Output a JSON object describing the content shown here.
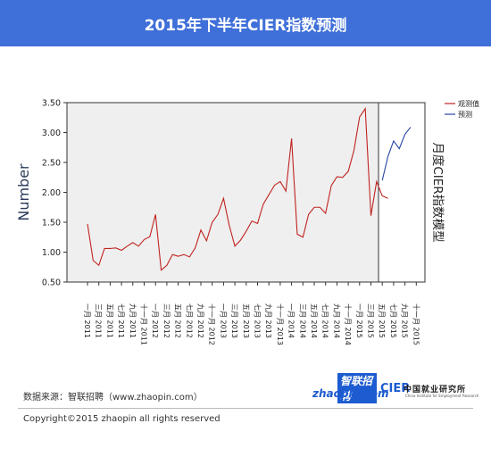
{
  "title": "2015年下半年CIER指数预测",
  "footer": {
    "source": "数据来源：智联招聘（www.zhaopin.com）",
    "copyright": "Copyright©2015 zhaopin all rights reserved"
  },
  "logos": {
    "zhaopin_cn": "智联招聘",
    "zhaopin_en": "zhaopin.com",
    "cier_mark": "CIER",
    "cier_cn": "中国就业研究所",
    "cier_en": "China Institute for Employment Research"
  },
  "colors": {
    "header_bg": "#3f6fd8",
    "observed": "#c0231f",
    "forecast": "#2746a7",
    "plot_bg": "#efefef"
  },
  "chart_data": {
    "type": "line",
    "ylabel": "Number",
    "right_label": "月度CIER指数模型",
    "ylim": [
      0.5,
      3.5
    ],
    "yticks": [
      "0.50",
      "1.00",
      "1.50",
      "2.00",
      "2.50",
      "3.00",
      "3.50"
    ],
    "x_ticks": [
      "一月 2011",
      "三月 2011",
      "五月 2011",
      "七月 2011",
      "九月 2011",
      "十一月 2011",
      "一月 2012",
      "三月 2012",
      "五月 2012",
      "七月 2012",
      "九月 2012",
      "十一月 2012",
      "一月 2013",
      "三月 2013",
      "五月 2013",
      "七月 2013",
      "九月 2013",
      "十一月 2013",
      "一月 2014",
      "三月 2014",
      "五月 2014",
      "七月 2014",
      "九月 2014",
      "十一月 2014",
      "一月 2015",
      "三月 2015",
      "五月 2015",
      "七月 2015",
      "九月 2015",
      "十一月 2015"
    ],
    "divider_after": "五月 2015",
    "series": [
      {
        "name": "观测值",
        "color": "#c0231f",
        "values": [
          1.47,
          0.86,
          0.78,
          1.06,
          1.06,
          1.07,
          1.03,
          1.1,
          1.16,
          1.1,
          1.21,
          1.26,
          1.63,
          0.7,
          0.78,
          0.96,
          0.93,
          0.96,
          0.92,
          1.07,
          1.37,
          1.19,
          1.5,
          1.63,
          1.9,
          1.45,
          1.1,
          1.2,
          1.35,
          1.52,
          1.48,
          1.8,
          1.96,
          2.12,
          2.18,
          2.02,
          2.9,
          1.3,
          1.25,
          1.63,
          1.75,
          1.75,
          1.65,
          2.11,
          2.26,
          2.25,
          2.35,
          2.7,
          3.26,
          3.4,
          1.61,
          2.18,
          1.94,
          1.9
        ]
      },
      {
        "name": "预测",
        "color": "#2746a7",
        "values": [
          2.2,
          2.6,
          2.86,
          2.73,
          2.97,
          3.09
        ]
      }
    ]
  }
}
